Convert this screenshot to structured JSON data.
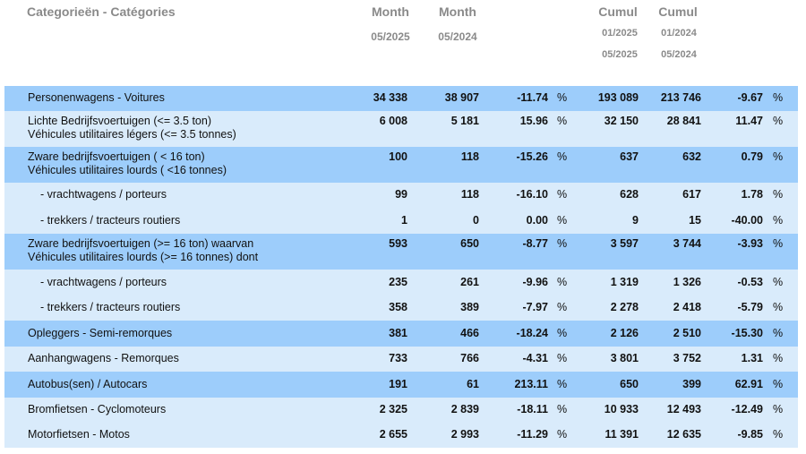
{
  "header": {
    "category": "Categorieën - Catégories",
    "month1": "Month",
    "month1_period": "05/2025",
    "month2": "Month",
    "month2_period": "05/2024",
    "cumul1": "Cumul",
    "cumul1_from": "01/2025",
    "cumul1_to": "05/2025",
    "cumul2": "Cumul",
    "cumul2_from": "01/2024",
    "cumul2_to": "05/2024"
  },
  "colors": {
    "dark_row": "#9dcdfb",
    "light_row": "#d9ebfb",
    "header_text": "#8a8a8a"
  },
  "rows": [
    {
      "label1": "Personenwagens - Voitures",
      "label2": "",
      "m1": "34 338",
      "m2": "38 907",
      "mp": "-11.74",
      "c1": "193 089",
      "c2": "213 746",
      "cp": "-9.67",
      "pct": "%",
      "pct2": "%"
    },
    {
      "label1": "Lichte Bedrijfsvoertuigen (<= 3.5 ton)",
      "label2": "Véhicules utilitaires légers (<= 3.5 tonnes)",
      "m1": "6 008",
      "m2": "5 181",
      "mp": "15.96",
      "c1": "32 150",
      "c2": "28 841",
      "cp": "11.47",
      "pct": "%",
      "pct2": "%"
    },
    {
      "label1": "Zware bedrijfsvoertuigen ( < 16 ton)",
      "label2": "Véhicules utilitaires lourds ( <16 tonnes)",
      "m1": "100",
      "m2": "118",
      "mp": "-15.26",
      "c1": "637",
      "c2": "632",
      "cp": "0.79",
      "pct": "%",
      "pct2": "%"
    },
    {
      "label1": "- vrachtwagens / porteurs",
      "label2": "",
      "m1": "99",
      "m2": "118",
      "mp": "-16.10",
      "c1": "628",
      "c2": "617",
      "cp": "1.78",
      "pct": "%",
      "pct2": "%"
    },
    {
      "label1": "- trekkers / tracteurs routiers",
      "label2": "",
      "m1": "1",
      "m2": "0",
      "mp": "0.00",
      "c1": "9",
      "c2": "15",
      "cp": "-40.00",
      "pct": "%",
      "pct2": "%"
    },
    {
      "label1": "Zware bedrijfsvoertuigen (>= 16 ton) waarvan",
      "label2": "Véhicules utilitaires lourds (>= 16 tonnes) dont",
      "m1": "593",
      "m2": "650",
      "mp": "-8.77",
      "c1": "3 597",
      "c2": "3 744",
      "cp": "-3.93",
      "pct": "%",
      "pct2": "%"
    },
    {
      "label1": "- vrachtwagens / porteurs",
      "label2": "",
      "m1": "235",
      "m2": "261",
      "mp": "-9.96",
      "c1": "1 319",
      "c2": "1 326",
      "cp": "-0.53",
      "pct": "%",
      "pct2": "%"
    },
    {
      "label1": "- trekkers / tracteurs routiers",
      "label2": "",
      "m1": "358",
      "m2": "389",
      "mp": "-7.97",
      "c1": "2 278",
      "c2": "2 418",
      "cp": "-5.79",
      "pct": "%",
      "pct2": "%"
    },
    {
      "label1": "Opleggers - Semi-remorques",
      "label2": "",
      "m1": "381",
      "m2": "466",
      "mp": "-18.24",
      "c1": "2 126",
      "c2": "2 510",
      "cp": "-15.30",
      "pct": "%",
      "pct2": "%"
    },
    {
      "label1": "Aanhangwagens - Remorques",
      "label2": "",
      "m1": "733",
      "m2": "766",
      "mp": "-4.31",
      "c1": "3 801",
      "c2": "3 752",
      "cp": "1.31",
      "pct": "%",
      "pct2": "%"
    },
    {
      "label1": "Autobus(sen) / Autocars",
      "label2": "",
      "m1": "191",
      "m2": "61",
      "mp": "213.11",
      "c1": "650",
      "c2": "399",
      "cp": "62.91",
      "pct": "%",
      "pct2": "%"
    },
    {
      "label1": "Bromfietsen - Cyclomoteurs",
      "label2": "",
      "m1": "2 325",
      "m2": "2 839",
      "mp": "-18.11",
      "c1": "10 933",
      "c2": "12 493",
      "cp": "-12.49",
      "pct": "%",
      "pct2": "%"
    },
    {
      "label1": "Motorfietsen - Motos",
      "label2": "",
      "m1": "2 655",
      "m2": "2 993",
      "mp": "-11.29",
      "c1": "11 391",
      "c2": "12 635",
      "cp": "-9.85",
      "pct": "%",
      "pct2": "%"
    }
  ]
}
